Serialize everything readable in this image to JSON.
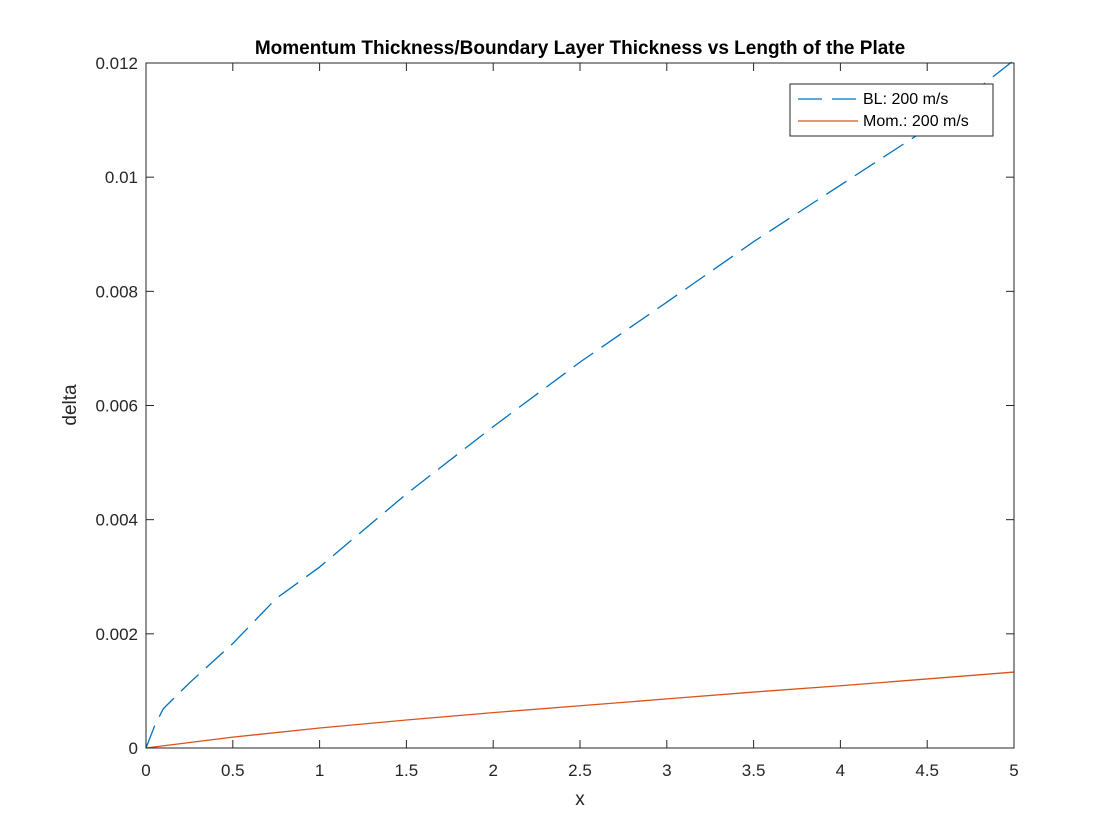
{
  "chart_data": {
    "type": "line",
    "title": "Momentum Thickness/Boundary Layer Thickness vs Length of the Plate",
    "xlabel": "x",
    "ylabel": "delta",
    "xlim": [
      0,
      5
    ],
    "ylim": [
      0,
      0.012
    ],
    "x_ticks": [
      0,
      0.5,
      1,
      1.5,
      2,
      2.5,
      3,
      3.5,
      4,
      4.5,
      5
    ],
    "x_tick_labels": [
      "0",
      "0.5",
      "1",
      "1.5",
      "2",
      "2.5",
      "3",
      "3.5",
      "4",
      "4.5",
      "5"
    ],
    "y_ticks": [
      0,
      0.002,
      0.004,
      0.006,
      0.008,
      0.01,
      0.012
    ],
    "y_tick_labels": [
      "0",
      "0.002",
      "0.004",
      "0.006",
      "0.008",
      "0.01",
      "0.012"
    ],
    "grid": false,
    "legend_position": "top-right",
    "series": [
      {
        "name": "BL: 200 m/s",
        "color": "#0072BD",
        "line_style": "dashed",
        "x": [
          0,
          0.05,
          0.1,
          0.25,
          0.5,
          0.75,
          1,
          1.5,
          2,
          2.5,
          3,
          3.5,
          4,
          4.5,
          5
        ],
        "y": [
          0,
          0.00039,
          0.00069,
          0.00114,
          0.00183,
          0.00262,
          0.00317,
          0.00445,
          0.00563,
          0.00676,
          0.00781,
          0.00887,
          0.00986,
          0.01085,
          0.01205
        ]
      },
      {
        "name": "Mom.: 200 m/s",
        "color": "#D95319",
        "line_style": "solid",
        "x": [
          0,
          0.5,
          1,
          1.5,
          2,
          2.5,
          3,
          3.5,
          4,
          4.5,
          5
        ],
        "y": [
          0,
          0.00019,
          0.00035,
          0.00049,
          0.00062,
          0.00074,
          0.00086,
          0.00098,
          0.00109,
          0.00121,
          0.00133
        ]
      }
    ]
  }
}
